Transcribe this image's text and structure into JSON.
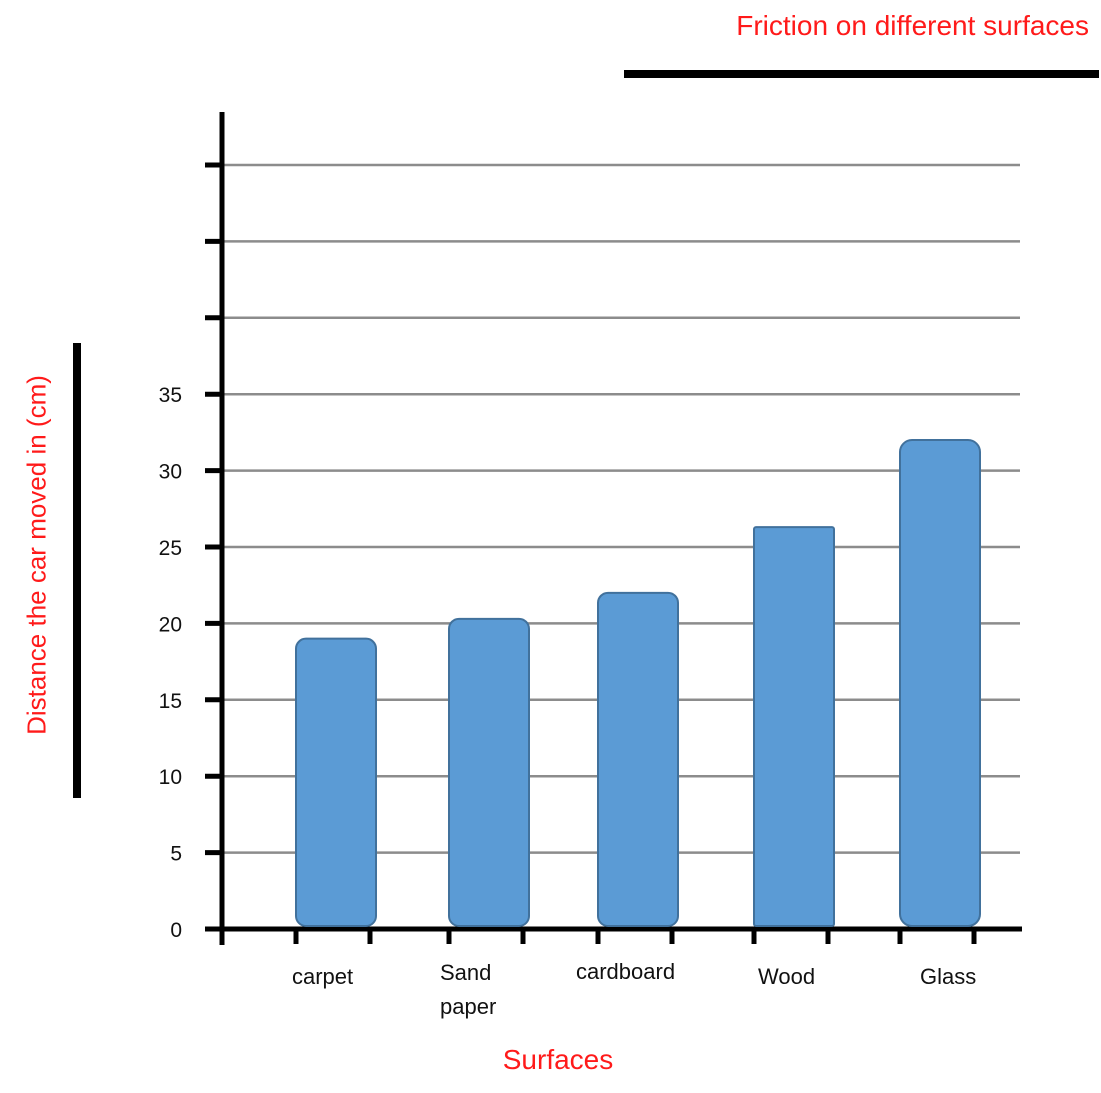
{
  "chart_data": {
    "type": "bar",
    "title": "Friction on different surfaces",
    "xlabel": "Surfaces",
    "ylabel": "Distance the car moved in (cm)",
    "categories": [
      [
        "carpet"
      ],
      [
        "Sand",
        "paper"
      ],
      [
        "cardboard"
      ],
      [
        "Wood"
      ],
      [
        "Glass"
      ]
    ],
    "values": [
      19,
      20.3,
      22,
      26.3,
      32
    ],
    "y_tick_labels": [
      "0",
      "5",
      "10",
      "15",
      "20",
      "25",
      "30",
      "35"
    ],
    "ylim": [
      0,
      50
    ],
    "grid": true,
    "legend": "none",
    "colors": {
      "bar_fill": "#5b9bd5",
      "bar_stroke": "#41719c",
      "grid": "#8c8c8c",
      "axis": "#000000",
      "label_accent": "#ff1a1a"
    }
  }
}
